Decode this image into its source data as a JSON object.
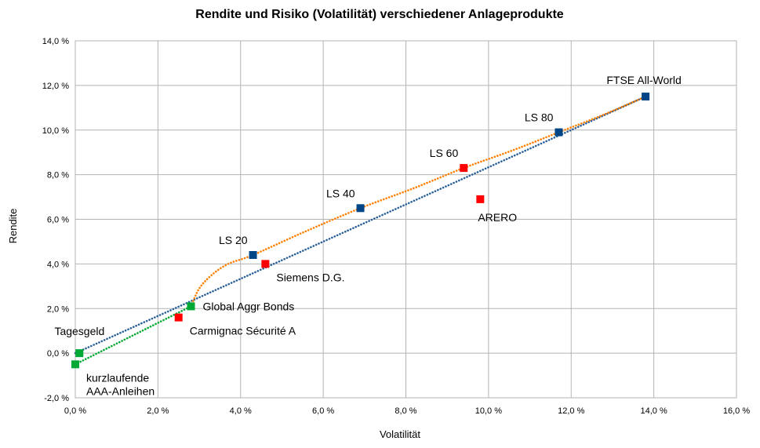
{
  "chart_data": {
    "type": "scatter",
    "title": "Rendite und Risiko (Volatilität) verschiedener Anlageprodukte",
    "xlabel": "Volatilität",
    "ylabel": "Rendite",
    "xlim": [
      0,
      16
    ],
    "ylim": [
      -2,
      14
    ],
    "x_ticks": [
      0,
      2,
      4,
      6,
      8,
      10,
      12,
      14,
      16
    ],
    "y_ticks": [
      -2,
      0,
      2,
      4,
      6,
      8,
      10,
      12,
      14
    ],
    "x_tick_labels": [
      "0,0 %",
      "2,0 %",
      "4,0 %",
      "6,0 %",
      "8,0 %",
      "10,0 %",
      "12,0 %",
      "14,0 %",
      "16,0 %"
    ],
    "y_tick_labels": [
      "-2,0 %",
      "0,0 %",
      "2,0 %",
      "4,0 %",
      "6,0 %",
      "8,0 %",
      "10,0 %",
      "12,0 %",
      "14,0 %"
    ],
    "grid": true,
    "colors": {
      "blue": "#004586",
      "red": "#ff0000",
      "green": "#00a933",
      "orange": "#ff8000",
      "trend_blue": "#2a6099",
      "trend_green": "#00a933",
      "grid": "#b3b3b3"
    },
    "points": [
      {
        "name": "Tagesgeld",
        "x": 0.1,
        "y": 0.0,
        "color": "green",
        "label_lines": [
          "Tagesgeld"
        ],
        "label_pos": "upper-left"
      },
      {
        "name": "kurzlaufende AAA-Anleihen",
        "x": 0.0,
        "y": -0.5,
        "color": "green",
        "label_lines": [
          "kurzlaufende",
          "AAA-Anleihen"
        ],
        "label_pos": "lower-right"
      },
      {
        "name": "Global Aggr Bonds",
        "x": 2.8,
        "y": 2.1,
        "color": "green",
        "label_lines": [
          "Global Aggr Bonds"
        ],
        "label_pos": "right"
      },
      {
        "name": "Carmignac Sécurité A",
        "x": 2.5,
        "y": 1.6,
        "color": "red",
        "label_lines": [
          "Carmignac Sécurité A"
        ],
        "label_pos": "lower-right"
      },
      {
        "name": "LS 20",
        "x": 4.3,
        "y": 4.4,
        "color": "blue",
        "label_lines": [
          "LS 20"
        ],
        "label_pos": "upper-left"
      },
      {
        "name": "Siemens D.G.",
        "x": 4.6,
        "y": 4.0,
        "color": "red",
        "label_lines": [
          "Siemens D.G."
        ],
        "label_pos": "lower-right"
      },
      {
        "name": "LS 40",
        "x": 6.9,
        "y": 6.5,
        "color": "blue",
        "label_lines": [
          "LS 40"
        ],
        "label_pos": "upper-left"
      },
      {
        "name": "LS 60",
        "x": 9.4,
        "y": 8.3,
        "color": "red",
        "label_lines": [
          "LS 60"
        ],
        "label_pos": "upper-left"
      },
      {
        "name": "ARERO",
        "x": 9.8,
        "y": 6.9,
        "color": "red",
        "label_lines": [
          "ARERO"
        ],
        "label_pos": "below"
      },
      {
        "name": "LS 80",
        "x": 11.7,
        "y": 9.9,
        "color": "blue",
        "label_lines": [
          "LS 80"
        ],
        "label_pos": "upper-left"
      },
      {
        "name": "FTSE All-World",
        "x": 13.8,
        "y": 11.5,
        "color": "blue",
        "label_lines": [
          "FTSE All-World"
        ],
        "label_pos": "above"
      }
    ],
    "trendlines": [
      {
        "name": "linear-blue",
        "color": "trend_blue",
        "points": [
          [
            0.0,
            0.0
          ],
          [
            13.8,
            11.5
          ]
        ]
      },
      {
        "name": "green-low",
        "color": "trend_green",
        "points": [
          [
            0.0,
            -0.5
          ],
          [
            2.8,
            2.1
          ]
        ]
      },
      {
        "name": "orange-curve",
        "color": "orange",
        "points": [
          [
            2.8,
            2.1
          ],
          [
            3.0,
            2.9
          ],
          [
            3.3,
            3.5
          ],
          [
            3.7,
            4.0
          ],
          [
            4.3,
            4.4
          ],
          [
            5.5,
            5.4
          ],
          [
            6.9,
            6.5
          ],
          [
            8.2,
            7.4
          ],
          [
            9.4,
            8.3
          ],
          [
            10.6,
            9.1
          ],
          [
            11.7,
            9.9
          ],
          [
            12.8,
            10.7
          ],
          [
            13.8,
            11.5
          ]
        ]
      }
    ]
  }
}
